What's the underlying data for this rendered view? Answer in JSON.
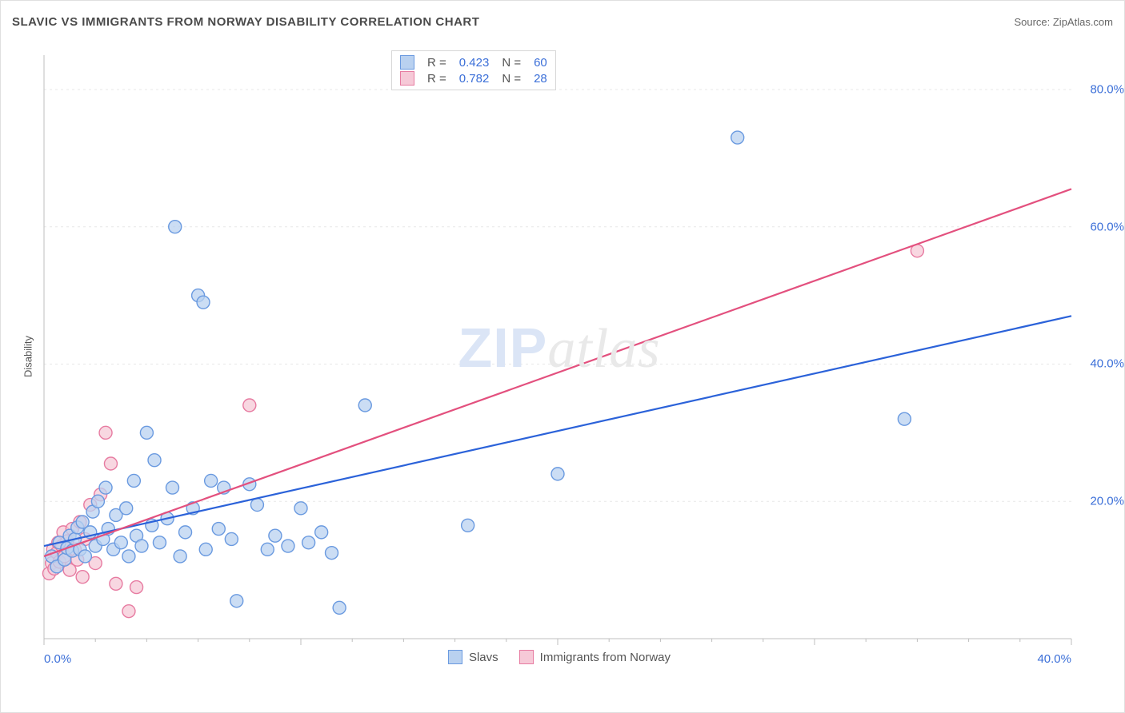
{
  "title": "SLAVIC VS IMMIGRANTS FROM NORWAY DISABILITY CORRELATION CHART",
  "source_label": "Source: ",
  "source_name": "ZipAtlas.com",
  "ylabel": "Disability",
  "watermark_a": "ZIP",
  "watermark_b": "atlas",
  "chart": {
    "type": "scatter-with-regression",
    "background_color": "#ffffff",
    "grid_color": "#e7e7e7",
    "axis_color": "#bfbfbf",
    "label_color": "#3b6fd8",
    "xlim": [
      0,
      40
    ],
    "ylim": [
      0,
      85
    ],
    "x_ticks": [
      0,
      10,
      20,
      30,
      40
    ],
    "x_tick_labels": [
      "0.0%",
      "",
      "",
      "",
      "40.0%"
    ],
    "y_ticks": [
      20,
      40,
      60,
      80
    ],
    "y_tick_labels": [
      "20.0%",
      "40.0%",
      "60.0%",
      "80.0%"
    ],
    "x_minor_ticks": [
      2,
      4,
      6,
      8,
      12,
      14,
      16,
      18,
      22,
      24,
      26,
      28,
      32,
      34,
      36,
      38
    ],
    "marker_radius": 8,
    "marker_stroke_width": 1.4,
    "line_width": 2.2,
    "series": [
      {
        "key": "slavs",
        "label": "Slavs",
        "fill": "#b9d1f0",
        "stroke": "#6a9ae0",
        "line_color": "#2b62d9",
        "R": "0.423",
        "N": "60",
        "regression": {
          "x1": 0,
          "y1": 13.5,
          "x2": 40,
          "y2": 47
        },
        "points": [
          [
            0.3,
            12.0
          ],
          [
            0.5,
            10.5
          ],
          [
            0.6,
            14.0
          ],
          [
            0.8,
            11.5
          ],
          [
            0.9,
            13.2
          ],
          [
            1.0,
            15.0
          ],
          [
            1.1,
            12.8
          ],
          [
            1.2,
            14.5
          ],
          [
            1.3,
            16.2
          ],
          [
            1.4,
            13.0
          ],
          [
            1.5,
            17.0
          ],
          [
            1.6,
            12.0
          ],
          [
            1.8,
            15.5
          ],
          [
            1.9,
            18.5
          ],
          [
            2.0,
            13.5
          ],
          [
            2.1,
            20.0
          ],
          [
            2.3,
            14.5
          ],
          [
            2.4,
            22.0
          ],
          [
            2.5,
            16.0
          ],
          [
            2.7,
            13.0
          ],
          [
            2.8,
            18.0
          ],
          [
            3.0,
            14.0
          ],
          [
            3.2,
            19.0
          ],
          [
            3.3,
            12.0
          ],
          [
            3.5,
            23.0
          ],
          [
            3.6,
            15.0
          ],
          [
            3.8,
            13.5
          ],
          [
            4.0,
            30.0
          ],
          [
            4.2,
            16.5
          ],
          [
            4.3,
            26.0
          ],
          [
            4.5,
            14.0
          ],
          [
            4.8,
            17.5
          ],
          [
            5.0,
            22.0
          ],
          [
            5.1,
            60.0
          ],
          [
            5.3,
            12.0
          ],
          [
            5.5,
            15.5
          ],
          [
            5.8,
            19.0
          ],
          [
            6.0,
            50.0
          ],
          [
            6.2,
            49.0
          ],
          [
            6.3,
            13.0
          ],
          [
            6.5,
            23.0
          ],
          [
            6.8,
            16.0
          ],
          [
            7.0,
            22.0
          ],
          [
            7.3,
            14.5
          ],
          [
            7.5,
            5.5
          ],
          [
            8.0,
            22.5
          ],
          [
            8.3,
            19.5
          ],
          [
            8.7,
            13.0
          ],
          [
            9.0,
            15.0
          ],
          [
            9.5,
            13.5
          ],
          [
            10.0,
            19.0
          ],
          [
            10.3,
            14.0
          ],
          [
            10.8,
            15.5
          ],
          [
            11.2,
            12.5
          ],
          [
            11.5,
            4.5
          ],
          [
            12.5,
            34.0
          ],
          [
            16.5,
            16.5
          ],
          [
            20.0,
            24.0
          ],
          [
            27.0,
            73.0
          ],
          [
            33.5,
            32.0
          ]
        ]
      },
      {
        "key": "norway",
        "label": "Immigrants from Norway",
        "fill": "#f6c9d7",
        "stroke": "#e77ba1",
        "line_color": "#e3507e",
        "R": "0.782",
        "N": "28",
        "regression": {
          "x1": 0,
          "y1": 12.0,
          "x2": 40,
          "y2": 65.5
        },
        "points": [
          [
            0.2,
            9.5
          ],
          [
            0.3,
            11.0
          ],
          [
            0.35,
            13.0
          ],
          [
            0.4,
            10.2
          ],
          [
            0.5,
            12.5
          ],
          [
            0.55,
            14.0
          ],
          [
            0.6,
            11.2
          ],
          [
            0.7,
            13.5
          ],
          [
            0.75,
            15.5
          ],
          [
            0.8,
            12.0
          ],
          [
            0.9,
            14.2
          ],
          [
            1.0,
            10.0
          ],
          [
            1.1,
            16.0
          ],
          [
            1.2,
            13.0
          ],
          [
            1.3,
            11.5
          ],
          [
            1.4,
            17.0
          ],
          [
            1.5,
            9.0
          ],
          [
            1.6,
            14.5
          ],
          [
            1.8,
            19.5
          ],
          [
            2.0,
            11.0
          ],
          [
            2.2,
            21.0
          ],
          [
            2.4,
            30.0
          ],
          [
            2.6,
            25.5
          ],
          [
            2.8,
            8.0
          ],
          [
            3.3,
            4.0
          ],
          [
            3.6,
            7.5
          ],
          [
            8.0,
            34.0
          ],
          [
            34.0,
            56.5
          ]
        ]
      }
    ]
  },
  "legend_stats": {
    "r_label": "R =",
    "n_label": "N ="
  }
}
